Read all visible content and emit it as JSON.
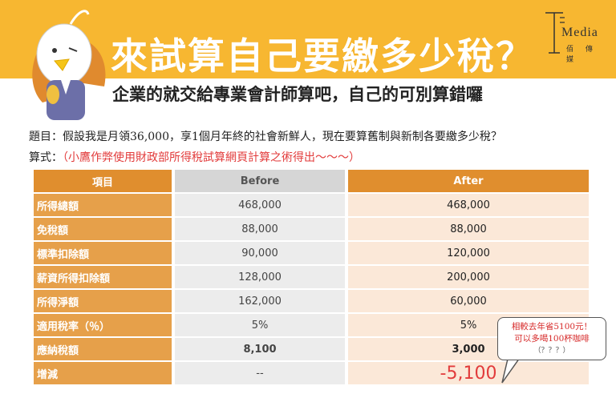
{
  "header": {
    "title": "來試算自己要繳多少稅？",
    "subtitle": "企業的就交給專業會計師算吧，自己的可別算錯囉",
    "logo_text": "Media",
    "logo_sub": "佰 傳 媒"
  },
  "question": {
    "text": "題目：假設我是月領36,000，享1個月年終的社會新鮮人，現在要算舊制與新制各要繳多少稅？"
  },
  "formula": {
    "label": "算式：",
    "note": "（小鷹作弊使用財政部所得稅試算網頁計算之術得出～～～）"
  },
  "table": {
    "headers": {
      "item": "項目",
      "before": "Before",
      "after": "After"
    },
    "rows": [
      {
        "label": "所得總額",
        "before": "468,000",
        "after": "468,000"
      },
      {
        "label": "免稅額",
        "before": "88,000",
        "after": "88,000"
      },
      {
        "label": "標準扣除額",
        "before": "90,000",
        "after": "120,000"
      },
      {
        "label": "薪資所得扣除額",
        "before": "128,000",
        "after": "200,000"
      },
      {
        "label": "所得淨額",
        "before": "162,000",
        "after": "60,000"
      },
      {
        "label": "適用稅率（％）",
        "before": "5%",
        "after": "5%"
      },
      {
        "label": "應納稅額",
        "before": "8,100",
        "after": "3,000"
      },
      {
        "label": "增減",
        "before": "--",
        "after": "-5,100"
      }
    ]
  },
  "bubble": {
    "line1": "相較去年省5100元！",
    "line2": "可以多喝100杯咖啡",
    "line3": "（？？？）"
  },
  "colors": {
    "banner": "#f7b731",
    "label_cell": "#e6a04a",
    "header_cell": "#e08e2e",
    "before_cell": "#ececec",
    "after_cell": "#fbe8d8",
    "accent_red": "#e23b3b"
  }
}
